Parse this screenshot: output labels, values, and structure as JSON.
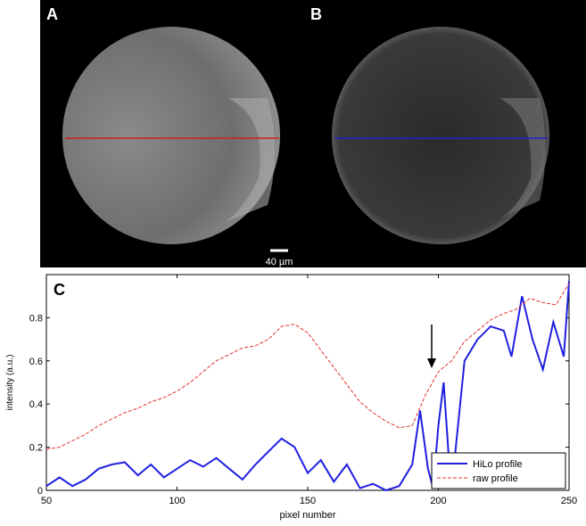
{
  "panels": {
    "a_label": "A",
    "b_label": "B",
    "scale_bar": "40 µm"
  },
  "chart_data": {
    "type": "line",
    "panel_label": "C",
    "x_label": "pixel number",
    "y_label": "intensity (a.u.)",
    "xlim": [
      50,
      250
    ],
    "xticks": [
      50,
      100,
      150,
      200,
      250
    ],
    "ylim": [
      0,
      1
    ],
    "yticks": [
      0,
      0.2,
      0.4,
      0.6,
      0.8
    ],
    "legend": "lower right",
    "series": [
      {
        "name": "HiLo profile",
        "color": "#1f1fe0",
        "style": "solid",
        "x": [
          50,
          55,
          60,
          65,
          70,
          75,
          80,
          85,
          90,
          95,
          100,
          105,
          110,
          115,
          120,
          125,
          130,
          135,
          140,
          145,
          150,
          155,
          160,
          165,
          170,
          175,
          180,
          185,
          190,
          193,
          196,
          198,
          200,
          202,
          204,
          206,
          210,
          215,
          220,
          225,
          228,
          232,
          236,
          240,
          244,
          248,
          250
        ],
        "values": [
          0.02,
          0.06,
          0.02,
          0.05,
          0.1,
          0.12,
          0.13,
          0.07,
          0.12,
          0.06,
          0.1,
          0.14,
          0.11,
          0.15,
          0.1,
          0.05,
          0.12,
          0.18,
          0.24,
          0.2,
          0.08,
          0.14,
          0.04,
          0.12,
          0.01,
          0.03,
          0.0,
          0.02,
          0.12,
          0.37,
          0.1,
          0.01,
          0.3,
          0.5,
          0.15,
          0.12,
          0.6,
          0.7,
          0.76,
          0.74,
          0.62,
          0.9,
          0.7,
          0.56,
          0.78,
          0.62,
          0.97
        ]
      },
      {
        "name": "raw profile",
        "color": "#e03030",
        "style": "dashed",
        "x": [
          50,
          55,
          60,
          65,
          70,
          75,
          80,
          85,
          90,
          95,
          100,
          105,
          110,
          115,
          120,
          125,
          130,
          135,
          140,
          145,
          150,
          155,
          160,
          165,
          170,
          175,
          180,
          185,
          190,
          195,
          200,
          205,
          210,
          215,
          220,
          225,
          230,
          235,
          240,
          245,
          250
        ],
        "values": [
          0.19,
          0.2,
          0.23,
          0.26,
          0.3,
          0.33,
          0.36,
          0.38,
          0.41,
          0.43,
          0.46,
          0.5,
          0.55,
          0.6,
          0.63,
          0.66,
          0.67,
          0.7,
          0.76,
          0.77,
          0.73,
          0.65,
          0.57,
          0.49,
          0.41,
          0.36,
          0.32,
          0.29,
          0.3,
          0.44,
          0.55,
          0.6,
          0.69,
          0.74,
          0.79,
          0.82,
          0.84,
          0.89,
          0.87,
          0.86,
          0.96
        ]
      }
    ]
  }
}
